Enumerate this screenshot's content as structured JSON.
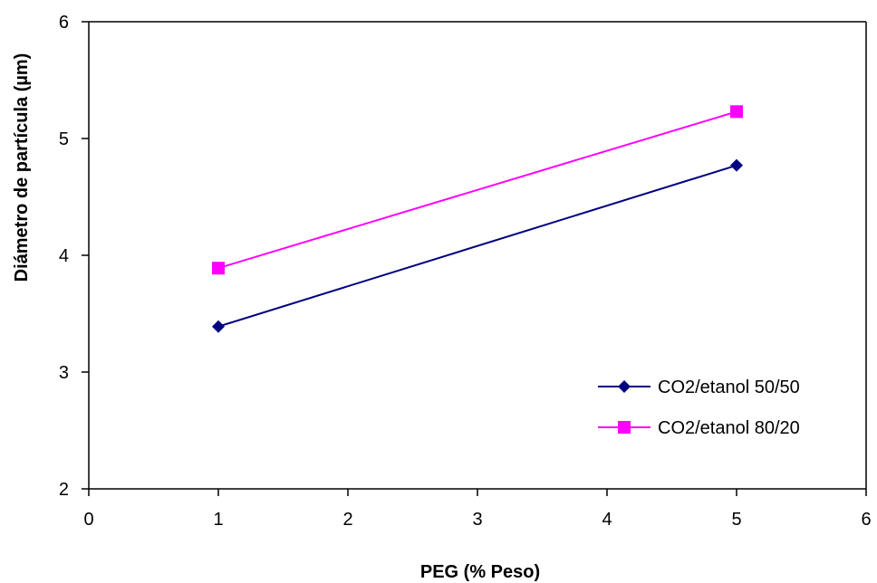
{
  "chart_data": {
    "type": "line",
    "title": "",
    "xlabel": "PEG (% Peso)",
    "ylabel": "Diámetro de partícula (µm)",
    "xlim": [
      0,
      6
    ],
    "ylim": [
      2,
      6
    ],
    "x_ticks": [
      "0",
      "1",
      "2",
      "3",
      "4",
      "5",
      "6"
    ],
    "y_ticks": [
      "2",
      "3",
      "4",
      "5",
      "6"
    ],
    "grid": false,
    "legend_position": "bottom-right",
    "series": [
      {
        "name": "CO2/etanol 50/50",
        "color": "#000080",
        "marker": "diamond",
        "x": [
          1,
          5
        ],
        "y": [
          3.39,
          4.77
        ]
      },
      {
        "name": "CO2/etanol 80/20",
        "color": "#FF00FF",
        "marker": "square",
        "x": [
          1,
          5
        ],
        "y": [
          3.89,
          5.23
        ]
      }
    ]
  }
}
